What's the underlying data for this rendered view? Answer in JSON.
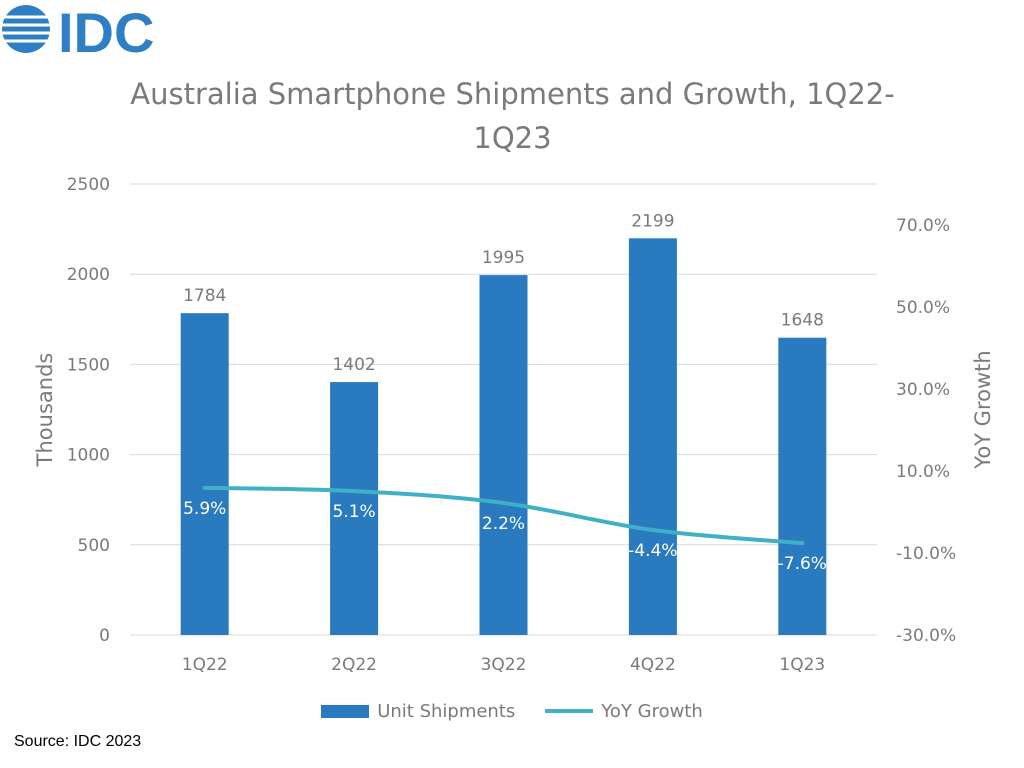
{
  "logo": {
    "text": "IDC",
    "color": "#2f7fc4"
  },
  "chart_data": {
    "type": "bar",
    "title": "Australia Smartphone Shipments and Growth, 1Q22-\n1Q23",
    "title_lines": [
      "Australia Smartphone Shipments and Growth, 1Q22-",
      "1Q23"
    ],
    "categories": [
      "1Q22",
      "2Q22",
      "3Q22",
      "4Q22",
      "1Q23"
    ],
    "series": [
      {
        "name": "Unit Shipments",
        "type": "bar",
        "axis": "left",
        "values": [
          1784,
          1402,
          1995,
          2199,
          1648
        ],
        "labels": [
          "1784",
          "1402",
          "1995",
          "2199",
          "1648"
        ],
        "color": "#2a7abf"
      },
      {
        "name": "YoY Growth",
        "type": "line",
        "axis": "right",
        "values": [
          5.9,
          5.1,
          2.2,
          -4.4,
          -7.6
        ],
        "labels": [
          "5.9%",
          "5.1%",
          "2.2%",
          "-4.4%",
          "-7.6%"
        ],
        "color": "#3fb0c8"
      }
    ],
    "ylabel": "Thousands",
    "ylim": [
      0,
      2500
    ],
    "yticks": [
      "0",
      "500",
      "1000",
      "1500",
      "2000",
      "2500"
    ],
    "y2label": "YoY Growth",
    "y2lim": [
      -30,
      80
    ],
    "y2ticks": [
      {
        "v": -30,
        "label": "-30.0%"
      },
      {
        "v": -10,
        "label": "-10.0%"
      },
      {
        "v": 10,
        "label": "10.0%"
      },
      {
        "v": 30,
        "label": "30.0%"
      },
      {
        "v": 50,
        "label": "50.0%"
      },
      {
        "v": 70,
        "label": "70.0%"
      }
    ],
    "grid": true,
    "legend_position": "bottom"
  },
  "source": "Source: IDC 2023"
}
